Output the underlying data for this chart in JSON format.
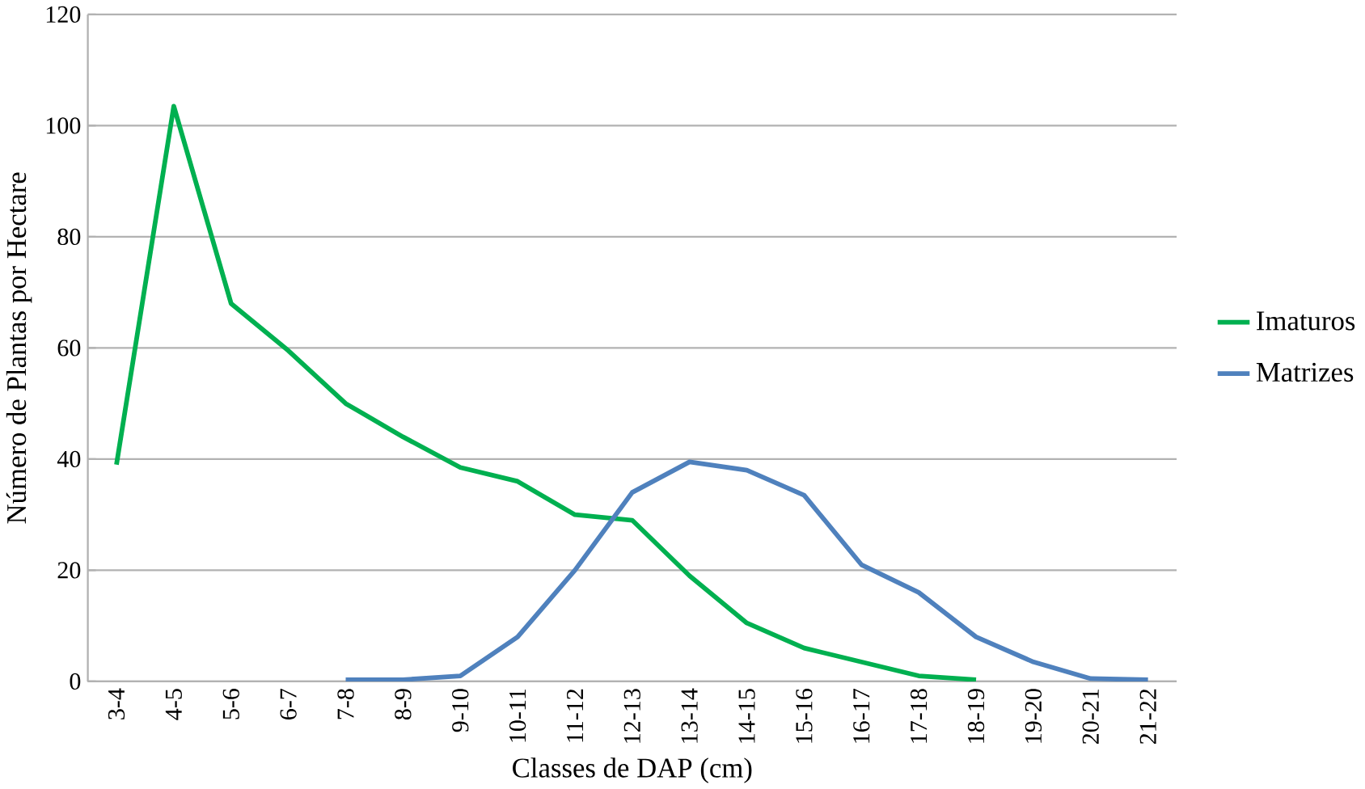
{
  "chart_data": {
    "type": "line",
    "xlabel": "Classes de DAP (cm)",
    "ylabel": "Número de Plantas por Hectare",
    "categories": [
      "3-4",
      "4-5",
      "5-6",
      "6-7",
      "7-8",
      "8-9",
      "9-10",
      "10-11",
      "11-12",
      "12-13",
      "13-14",
      "14-15",
      "15-16",
      "16-17",
      "17-18",
      "18-19",
      "19-20",
      "20-21",
      "21-22"
    ],
    "series": [
      {
        "name": "Imaturos",
        "color": "#00b050",
        "values": [
          39,
          103.5,
          68,
          59.5,
          50,
          44,
          38.5,
          36,
          30,
          29,
          19,
          10.5,
          6,
          3.5,
          1,
          0.3,
          null,
          null,
          null
        ]
      },
      {
        "name": "Matrizes",
        "color": "#4f81bd",
        "values": [
          null,
          null,
          null,
          null,
          0.3,
          0.3,
          1,
          8,
          20,
          34,
          39.5,
          38,
          33.5,
          21,
          16,
          8,
          3.5,
          0.5,
          0.3
        ]
      }
    ],
    "ylim": [
      0,
      120
    ],
    "yticks": [
      0,
      20,
      40,
      60,
      80,
      100,
      120
    ],
    "grid": "y",
    "legend": "right",
    "marker": "none",
    "line_style": "solid"
  }
}
